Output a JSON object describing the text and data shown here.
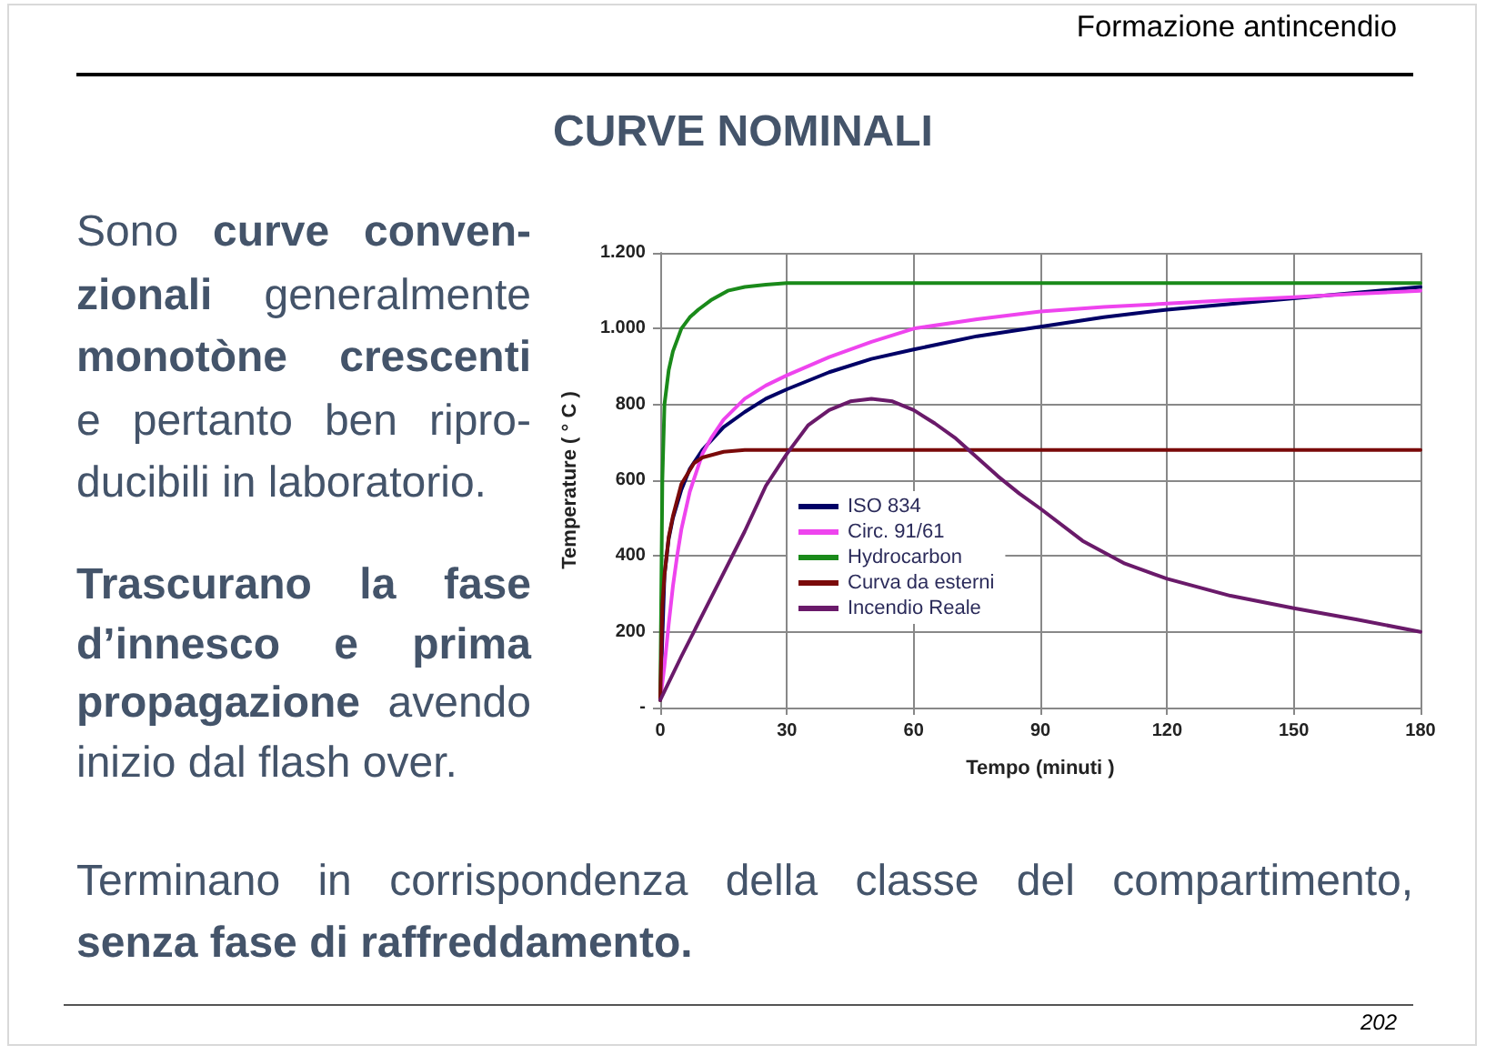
{
  "chart_data": {
    "type": "line",
    "title": "CURVE NOMINALI",
    "xlabel": "Tempo (minuti )",
    "ylabel": "Temperature ( ° C )",
    "xlim": [
      0,
      180
    ],
    "ylim": [
      0,
      1200
    ],
    "xticks": [
      0,
      30,
      60,
      90,
      120,
      150,
      180
    ],
    "yticks": [
      {
        "value": 0,
        "label": "-"
      },
      200,
      400,
      600,
      800,
      {
        "value": 1000,
        "label": "1.000"
      },
      {
        "value": 1200,
        "label": "1.200"
      }
    ],
    "grid": true,
    "legend": "bottom left",
    "marker": "none",
    "series": [
      {
        "name": "ISO 834",
        "color": "#000066",
        "x": [
          0,
          1,
          2,
          3,
          5,
          7,
          10,
          15,
          20,
          25,
          30,
          40,
          50,
          60,
          75,
          90,
          105,
          120,
          135,
          150,
          165,
          180
        ],
        "values": [
          20,
          350,
          445,
          500,
          575,
          630,
          680,
          740,
          780,
          815,
          840,
          885,
          920,
          945,
          980,
          1005,
          1030,
          1050,
          1065,
          1080,
          1095,
          1110
        ]
      },
      {
        "name": "Circ. 91/61",
        "color": "#ee44ee",
        "x": [
          0,
          1,
          2,
          3,
          4,
          5,
          7,
          10,
          12,
          15,
          20,
          25,
          30,
          40,
          50,
          60,
          75,
          90,
          105,
          120,
          135,
          150,
          165,
          180
        ],
        "values": [
          20,
          110,
          220,
          320,
          400,
          470,
          570,
          670,
          710,
          760,
          815,
          850,
          877,
          925,
          965,
          1000,
          1025,
          1045,
          1057,
          1066,
          1075,
          1083,
          1092,
          1100
        ]
      },
      {
        "name": "Hydrocarbon",
        "color": "#1a8a1a",
        "x": [
          0,
          0.5,
          1,
          2,
          3,
          5,
          7,
          9,
          12,
          16,
          20,
          25,
          30,
          60,
          90,
          120,
          150,
          180
        ],
        "values": [
          20,
          600,
          800,
          890,
          940,
          1000,
          1030,
          1050,
          1075,
          1100,
          1110,
          1116,
          1120,
          1120,
          1120,
          1120,
          1120,
          1120
        ]
      },
      {
        "name": "Curva da esterni",
        "color": "#7a0a0a",
        "x": [
          0,
          0.5,
          1,
          2,
          3,
          5,
          8,
          10,
          15,
          20,
          30,
          60,
          90,
          120,
          150,
          180
        ],
        "values": [
          20,
          270,
          350,
          450,
          505,
          590,
          645,
          660,
          675,
          680,
          680,
          680,
          680,
          680,
          680,
          680
        ]
      },
      {
        "name": "Incendio Reale",
        "color": "#6a1a6a",
        "x": [
          0,
          5,
          10,
          15,
          20,
          25,
          30,
          35,
          40,
          45,
          50,
          55,
          60,
          65,
          70,
          75,
          80,
          85,
          90,
          100,
          110,
          120,
          135,
          150,
          165,
          180
        ],
        "values": [
          20,
          135,
          245,
          355,
          465,
          585,
          670,
          745,
          785,
          808,
          815,
          808,
          785,
          750,
          710,
          660,
          610,
          565,
          525,
          440,
          380,
          340,
          295,
          262,
          232,
          200
        ]
      }
    ],
    "annotations": [
      "Formazione antincendio",
      "Sono",
      "curve conven-",
      "zionali",
      "generalmente",
      "monotòne crescenti",
      "e pertanto ben ripro-",
      "ducibili in laboratorio.",
      "Trascurano la fase",
      "d’innesco e prima",
      "propagazione",
      "avendo",
      "inizio dal flash over.",
      "Terminano in corrispondenza della classe del compartimento,",
      "senza fase di raffreddamento.",
      "202"
    ]
  }
}
